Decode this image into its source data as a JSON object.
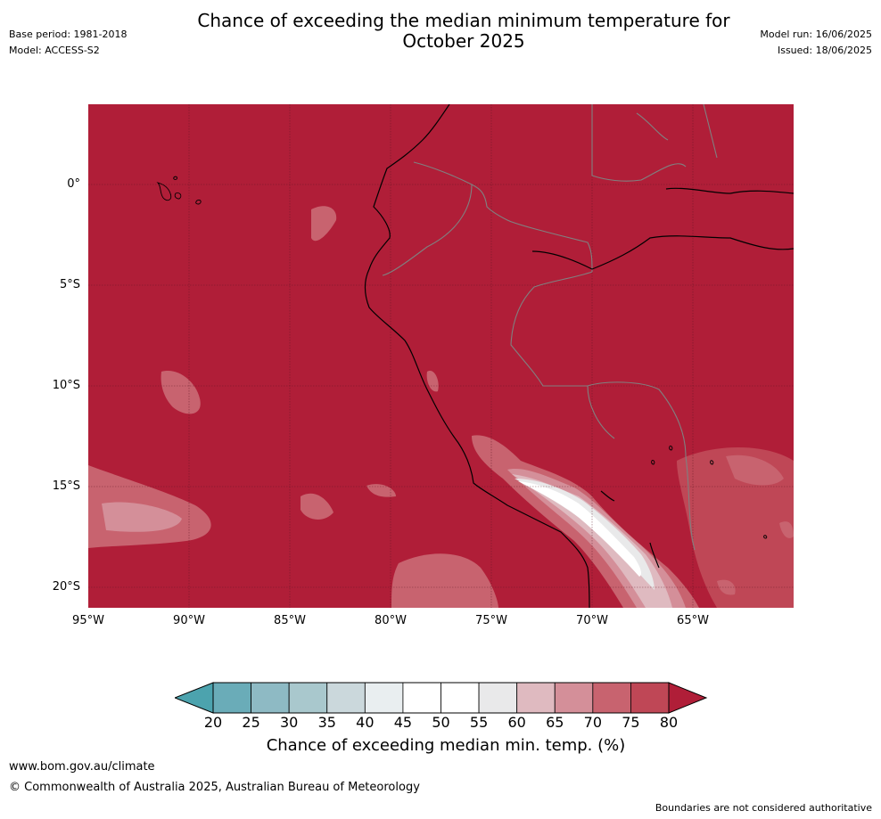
{
  "title_line1": "Chance of exceeding the median minimum temperature for",
  "title_line2": "October 2025",
  "meta": {
    "base_period": "Base period: 1981-2018",
    "model": "Model: ACCESS-S2",
    "model_run": "Model run: 16/06/2025",
    "issued": "Issued: 18/06/2025"
  },
  "map": {
    "lat_ticks": [
      "0°",
      "5°S",
      "10°S",
      "15°S",
      "20°S"
    ],
    "lon_ticks": [
      "95°W",
      "90°W",
      "85°W",
      "80°W",
      "75°W",
      "70°W",
      "65°W"
    ],
    "background_color": "#b01e38"
  },
  "colorbar": {
    "ticks": [
      "20",
      "25",
      "30",
      "35",
      "40",
      "45",
      "50",
      "55",
      "60",
      "65",
      "70",
      "75",
      "80"
    ],
    "colors": [
      "#6aacb8",
      "#8ebac4",
      "#a9c8cd",
      "#cbd8dc",
      "#e9eef0",
      "#ffffff",
      "#ffffff",
      "#e9e9ea",
      "#dfbac0",
      "#d48f99",
      "#c8636f",
      "#bf4756"
    ],
    "under_color": "#4ca3ae",
    "over_color": "#b01e38",
    "label": "Chance of exceeding median min. temp. (%)"
  },
  "footer": {
    "website": "www.bom.gov.au/climate",
    "copyright": "© Commonwealth of Australia 2025, Australian Bureau of Meteorology",
    "disclaimer": "Boundaries are not considered authoritative"
  }
}
